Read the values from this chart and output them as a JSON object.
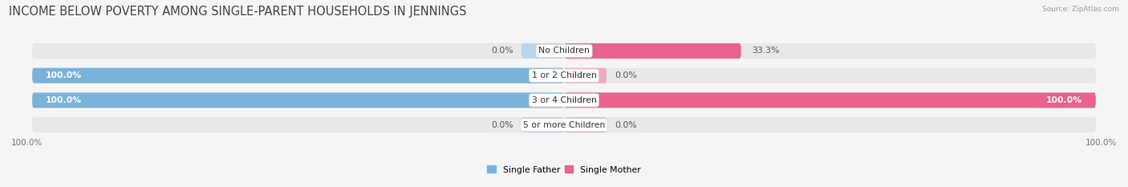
{
  "title": "INCOME BELOW POVERTY AMONG SINGLE-PARENT HOUSEHOLDS IN JENNINGS",
  "source": "Source: ZipAtlas.com",
  "categories": [
    "No Children",
    "1 or 2 Children",
    "3 or 4 Children",
    "5 or more Children"
  ],
  "single_father": [
    0.0,
    100.0,
    100.0,
    0.0
  ],
  "single_mother": [
    33.3,
    0.0,
    100.0,
    0.0
  ],
  "father_color": "#7ab3d9",
  "mother_color": "#e8628a",
  "father_color_light": "#b8d5ea",
  "mother_color_light": "#f2a8be",
  "bar_bg_color": "#e8e8e8",
  "bar_height": 0.62,
  "title_fontsize": 10.5,
  "label_fontsize": 7.8,
  "value_fontsize": 7.8,
  "tick_fontsize": 7.5,
  "figsize": [
    14.06,
    2.33
  ],
  "dpi": 100,
  "legend_labels": [
    "Single Father",
    "Single Mother"
  ],
  "background_color": "#f5f5f5",
  "bar_bg_border_color": "#d0d0d0"
}
